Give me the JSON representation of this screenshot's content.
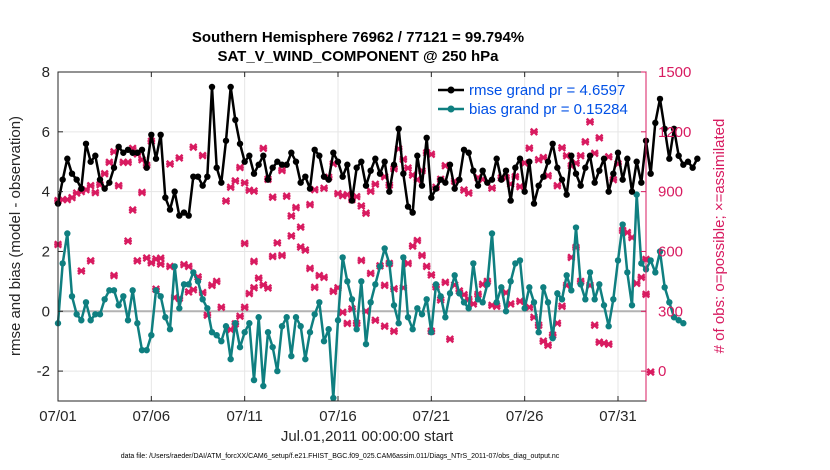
{
  "chart_data": {
    "type": "line",
    "title": "Southern Hemisphere 76962 / 77121 = 99.794%",
    "subtitle": "SAT_V_WIND_COMPONENT @ 250 hPa",
    "xlabel": "Jul.01,2011 00:00:00 start",
    "ylabel": "rmse and bias (model - observation)",
    "y2label": "# of obs: o=possible; ×=assimilated",
    "xlim": [
      0,
      31.5
    ],
    "ylim": [
      -3,
      8
    ],
    "y2lim": [
      -150,
      1500
    ],
    "x_ticks": [
      {
        "value": 0,
        "label": "07/01"
      },
      {
        "value": 5,
        "label": "07/06"
      },
      {
        "value": 10,
        "label": "07/11"
      },
      {
        "value": 15,
        "label": "07/16"
      },
      {
        "value": 20,
        "label": "07/21"
      },
      {
        "value": 25,
        "label": "07/26"
      },
      {
        "value": 30,
        "label": "07/31"
      }
    ],
    "y_ticks": [
      {
        "value": -2,
        "label": "-2"
      },
      {
        "value": 0,
        "label": "0"
      },
      {
        "value": 2,
        "label": "2"
      },
      {
        "value": 4,
        "label": "4"
      },
      {
        "value": 6,
        "label": "6"
      },
      {
        "value": 8,
        "label": "8"
      }
    ],
    "y2_ticks": [
      {
        "value": 0,
        "label": "0"
      },
      {
        "value": 300,
        "label": "300"
      },
      {
        "value": 600,
        "label": "600"
      },
      {
        "value": 900,
        "label": "900"
      },
      {
        "value": 1200,
        "label": "1200"
      },
      {
        "value": 1500,
        "label": "1500"
      }
    ],
    "x_step": 0.25,
    "series": [
      {
        "name": "rmse",
        "legend": "rmse grand pr = 4.6597",
        "color": "#000000",
        "axis": "left",
        "values": [
          3.6,
          4.4,
          5.1,
          4.6,
          4.4,
          4.1,
          5.6,
          5.0,
          5.2,
          4.4,
          4.1,
          4.3,
          4.8,
          5.5,
          5.3,
          5.4,
          5.3,
          5.3,
          5.4,
          4.8,
          5.9,
          5.1,
          5.9,
          3.8,
          3.4,
          4.0,
          3.2,
          3.3,
          3.2,
          4.5,
          4.5,
          4.2,
          4.5,
          7.5,
          4.8,
          4.3,
          5.7,
          7.5,
          6.4,
          5.6,
          5.0,
          5.2,
          4.6,
          4.9,
          5.2,
          4.4,
          4.8,
          5.0,
          4.9,
          4.9,
          5.3,
          5.0,
          4.3,
          4.5,
          4.1,
          5.4,
          5.2,
          4.5,
          4.4,
          5.3,
          5.0,
          4.5,
          4.9,
          3.7,
          4.8,
          5.0,
          4.2,
          4.7,
          5.1,
          4.6,
          5.0,
          4.0,
          4.9,
          6.1,
          4.6,
          3.5,
          3.3,
          5.2,
          4.2,
          5.8,
          3.8,
          4.1,
          4.4,
          4.3,
          4.9,
          4.1,
          4.4,
          5.4,
          5.3,
          4.7,
          4.2,
          4.7,
          4.3,
          4.4,
          5.1,
          4.4,
          4.7,
          3.7,
          4.8,
          5.1,
          4.0,
          5.0,
          3.6,
          4.2,
          4.5,
          5.0,
          5.6,
          4.8,
          4.4,
          3.9,
          5.2,
          4.6,
          4.2,
          4.8,
          5.2,
          4.3,
          4.7,
          5.1,
          4.0,
          4.6,
          5.3,
          4.4,
          5.1,
          4.0,
          5.0,
          4.3,
          5.7,
          4.6,
          6.3,
          7.1,
          6.1,
          5.1,
          6.1,
          5.2,
          4.9,
          5.0,
          4.8,
          5.1
        ]
      },
      {
        "name": "bias",
        "legend": "bias grand pr = 0.15284",
        "color": "#0f7f80",
        "axis": "left",
        "values": [
          -0.4,
          1.6,
          2.6,
          0.5,
          -0.1,
          -0.3,
          0.3,
          -0.3,
          -0.1,
          -0.1,
          0.4,
          0.7,
          0.7,
          0.2,
          0.5,
          -0.3,
          0.7,
          -0.4,
          -1.3,
          -1.3,
          -0.8,
          0.7,
          0.5,
          -0.2,
          -0.6,
          1.5,
          0.1,
          0.9,
          0.9,
          1.3,
          1.0,
          0.4,
          0.1,
          -0.7,
          -0.8,
          -1.0,
          -0.5,
          -1.6,
          -0.4,
          -1.2,
          -0.7,
          -0.4,
          -2.3,
          -0.2,
          -2.5,
          -0.7,
          -1.2,
          -2.0,
          -0.5,
          -0.2,
          -1.5,
          -0.2,
          -0.5,
          -1.6,
          -0.7,
          -0.1,
          0.3,
          -1.0,
          -0.6,
          -2.9,
          -0.3,
          1.8,
          1.0,
          0.4,
          -0.6,
          1.0,
          -1.1,
          0.3,
          0.9,
          1.5,
          2.1,
          1.6,
          0.2,
          -0.4,
          1.8,
          -0.2,
          -0.6,
          0.1,
          -0.1,
          0.4,
          -0.7,
          0.9,
          0.5,
          -0.2,
          0.6,
          1.2,
          0.6,
          0.3,
          0.1,
          1.6,
          0.4,
          0.3,
          0.9,
          2.6,
          0.3,
          0.8,
          0.0,
          1.0,
          1.6,
          1.7,
          0.1,
          0.8,
          0.3,
          -0.7,
          0.8,
          0.3,
          -0.9,
          0.6,
          0.4,
          1.2,
          0.7,
          2.8,
          0.9,
          0.4,
          1.3,
          0.4,
          0.9,
          0.2,
          -0.5,
          0.4,
          1.7,
          2.9,
          1.3,
          0.2,
          3.9,
          1.6,
          1.4,
          1.7,
          1.3,
          2.0,
          0.8,
          0.3,
          -0.2,
          -0.3,
          -0.4
        ]
      }
    ],
    "obs_assimilated": {
      "name": "# of obs assimilated",
      "marker": "×",
      "color": "#d81b60",
      "axis": "right",
      "points": [
        [
          0.0,
          855
        ],
        [
          0.25,
          860
        ],
        [
          0.5,
          860
        ],
        [
          0.75,
          870
        ],
        [
          1.0,
          893
        ],
        [
          1.25,
          900
        ],
        [
          1.5,
          910
        ],
        [
          1.75,
          930
        ],
        [
          2.0,
          895
        ],
        [
          2.25,
          935
        ],
        [
          2.5,
          990
        ],
        [
          2.75,
          1047
        ],
        [
          3.0,
          1100
        ],
        [
          3.25,
          930
        ],
        [
          3.5,
          1047
        ],
        [
          3.75,
          1047
        ],
        [
          4.0,
          1117
        ],
        [
          4.25,
          1089
        ],
        [
          4.5,
          1060
        ],
        [
          4.75,
          1032
        ],
        [
          5.0,
          1153
        ],
        [
          0.0,
          635
        ],
        [
          1.25,
          502
        ],
        [
          1.75,
          553
        ],
        [
          3.75,
          652
        ],
        [
          3.0,
          479
        ],
        [
          4.25,
          553
        ],
        [
          4.75,
          567
        ],
        [
          5.0,
          543
        ],
        [
          5.25,
          411
        ],
        [
          5.5,
          537
        ],
        [
          6.0,
          525
        ],
        [
          6.25,
          369
        ],
        [
          6.5,
          365
        ],
        [
          7.0,
          397
        ],
        [
          7.25,
          408
        ],
        [
          7.5,
          472
        ],
        [
          7.75,
          394
        ],
        [
          8.0,
          280
        ],
        [
          8.25,
          430
        ],
        [
          8.5,
          450
        ],
        [
          4.0,
          808
        ],
        [
          4.5,
          896
        ],
        [
          6.0,
          1039
        ],
        [
          6.5,
          1069
        ],
        [
          7.25,
          1123
        ],
        [
          7.75,
          1081
        ],
        [
          5.25,
          562
        ],
        [
          5.5,
          566
        ],
        [
          6.75,
          534
        ],
        [
          7.0,
          525
        ],
        [
          8.75,
          320
        ],
        [
          9.25,
          208
        ],
        [
          9.5,
          237
        ],
        [
          9.75,
          275
        ],
        [
          10.0,
          320
        ],
        [
          10.25,
          389
        ],
        [
          10.5,
          418
        ],
        [
          10.75,
          466
        ],
        [
          11.0,
          432
        ],
        [
          11.25,
          417
        ],
        [
          9.0,
          853
        ],
        [
          9.25,
          922
        ],
        [
          9.5,
          954
        ],
        [
          9.75,
          1021
        ],
        [
          10.0,
          944
        ],
        [
          10.25,
          907
        ],
        [
          10.5,
          903
        ],
        [
          11.0,
          1117
        ],
        [
          11.25,
          962
        ],
        [
          11.5,
          872
        ],
        [
          12.0,
          1006
        ],
        [
          12.25,
          877
        ],
        [
          12.5,
          778
        ],
        [
          12.75,
          820
        ],
        [
          13.0,
          722
        ],
        [
          13.5,
          835
        ],
        [
          13.75,
          910
        ],
        [
          14.25,
          917
        ],
        [
          14.5,
          972
        ],
        [
          14.75,
          1040
        ],
        [
          11.75,
          643
        ],
        [
          12.5,
          678
        ],
        [
          13.0,
          622
        ],
        [
          13.25,
          607
        ],
        [
          13.5,
          515
        ],
        [
          14.0,
          479
        ],
        [
          14.75,
          400
        ],
        [
          15.25,
          295
        ],
        [
          15.5,
          239
        ],
        [
          15.75,
          312
        ],
        [
          10.0,
          640
        ],
        [
          10.5,
          550
        ],
        [
          11.5,
          575
        ],
        [
          12.0,
          580
        ],
        [
          13.75,
          420
        ],
        [
          14.25,
          470
        ],
        [
          15.0,
          418
        ],
        [
          16.0,
          240
        ],
        [
          16.5,
          300
        ],
        [
          17.0,
          255
        ],
        [
          15.0,
          890
        ],
        [
          15.25,
          880
        ],
        [
          15.5,
          885
        ],
        [
          15.75,
          860
        ],
        [
          16.0,
          875
        ],
        [
          16.25,
          828
        ],
        [
          16.5,
          792
        ],
        [
          16.75,
          902
        ],
        [
          17.0,
          937
        ],
        [
          17.5,
          975
        ],
        [
          17.75,
          933
        ],
        [
          18.0,
          1015
        ],
        [
          18.25,
          1115
        ],
        [
          18.5,
          1062
        ],
        [
          18.75,
          1018
        ],
        [
          19.0,
          983
        ],
        [
          19.25,
          960
        ],
        [
          19.5,
          1005
        ],
        [
          19.75,
          1095
        ],
        [
          20.0,
          1087
        ],
        [
          16.25,
          555
        ],
        [
          16.75,
          490
        ],
        [
          17.25,
          528
        ],
        [
          17.5,
          430
        ],
        [
          17.75,
          540
        ],
        [
          18.0,
          413
        ],
        [
          18.5,
          418
        ],
        [
          18.75,
          540
        ],
        [
          19.0,
          627
        ],
        [
          19.25,
          655
        ],
        [
          19.5,
          580
        ],
        [
          19.75,
          525
        ],
        [
          20.0,
          482
        ],
        [
          20.25,
          423
        ],
        [
          20.5,
          357
        ],
        [
          20.75,
          445
        ],
        [
          21.25,
          432
        ],
        [
          21.5,
          402
        ],
        [
          21.75,
          383
        ],
        [
          22.0,
          360
        ],
        [
          17.5,
          225
        ],
        [
          18.0,
          200
        ],
        [
          20.0,
          200
        ],
        [
          21.0,
          160
        ],
        [
          22.25,
          337
        ],
        [
          22.5,
          385
        ],
        [
          22.75,
          435
        ],
        [
          23.0,
          450
        ],
        [
          23.25,
          330
        ],
        [
          23.5,
          325
        ],
        [
          20.25,
          922
        ],
        [
          20.5,
          962
        ],
        [
          20.75,
          1030
        ],
        [
          21.25,
          952
        ],
        [
          21.75,
          908
        ],
        [
          22.0,
          893
        ],
        [
          22.5,
          970
        ],
        [
          22.75,
          962
        ],
        [
          23.25,
          918
        ],
        [
          23.75,
          969
        ],
        [
          24.0,
          970
        ],
        [
          24.25,
          938
        ],
        [
          24.5,
          975
        ],
        [
          24.75,
          925
        ],
        [
          25.0,
          1044
        ],
        [
          25.25,
          1118
        ],
        [
          25.5,
          1200
        ],
        [
          25.75,
          1060
        ],
        [
          26.0,
          1071
        ],
        [
          26.25,
          980
        ],
        [
          24.0,
          393
        ],
        [
          24.25,
          337
        ],
        [
          24.75,
          350
        ],
        [
          25.25,
          320
        ],
        [
          25.5,
          270
        ],
        [
          25.75,
          230
        ],
        [
          26.0,
          150
        ],
        [
          26.25,
          130
        ],
        [
          26.5,
          180
        ],
        [
          26.75,
          240
        ],
        [
          26.75,
          930
        ],
        [
          27.0,
          1120
        ],
        [
          27.25,
          1080
        ],
        [
          27.5,
          1030
        ],
        [
          27.75,
          1043
        ],
        [
          28.0,
          1080
        ],
        [
          28.25,
          1150
        ],
        [
          28.5,
          1250
        ],
        [
          28.75,
          1092
        ],
        [
          29.0,
          1170
        ],
        [
          27.0,
          325
        ],
        [
          27.25,
          430
        ],
        [
          27.5,
          570
        ],
        [
          27.75,
          620
        ],
        [
          28.0,
          450
        ],
        [
          28.5,
          430
        ],
        [
          28.75,
          230
        ],
        [
          29.0,
          145
        ],
        [
          29.25,
          140
        ],
        [
          29.5,
          135
        ],
        [
          29.5,
          1075
        ],
        [
          29.75,
          960
        ],
        [
          30.0,
          1040
        ],
        [
          30.25,
          705
        ],
        [
          30.5,
          695
        ],
        [
          30.75,
          670
        ],
        [
          31.0,
          440
        ],
        [
          31.25,
          470
        ],
        [
          31.5,
          560
        ],
        [
          31.5,
          385
        ],
        [
          31.75,
          -5
        ]
      ]
    },
    "legend_position": "top-right"
  },
  "footer": "data file: /Users/raeder/DAI/ATM_forcXX/CAM6_setup/f.e21.FHIST_BGC.f09_025.CAM6assim.011/Diags_NTrS_2011-07/obs_diag_output.nc",
  "colors": {
    "axis": "#262626",
    "grid": "#e6e6e6",
    "zero_line": "#b3b3b3",
    "right_axis": "#d81b60",
    "legend_text": "#0050e6"
  }
}
